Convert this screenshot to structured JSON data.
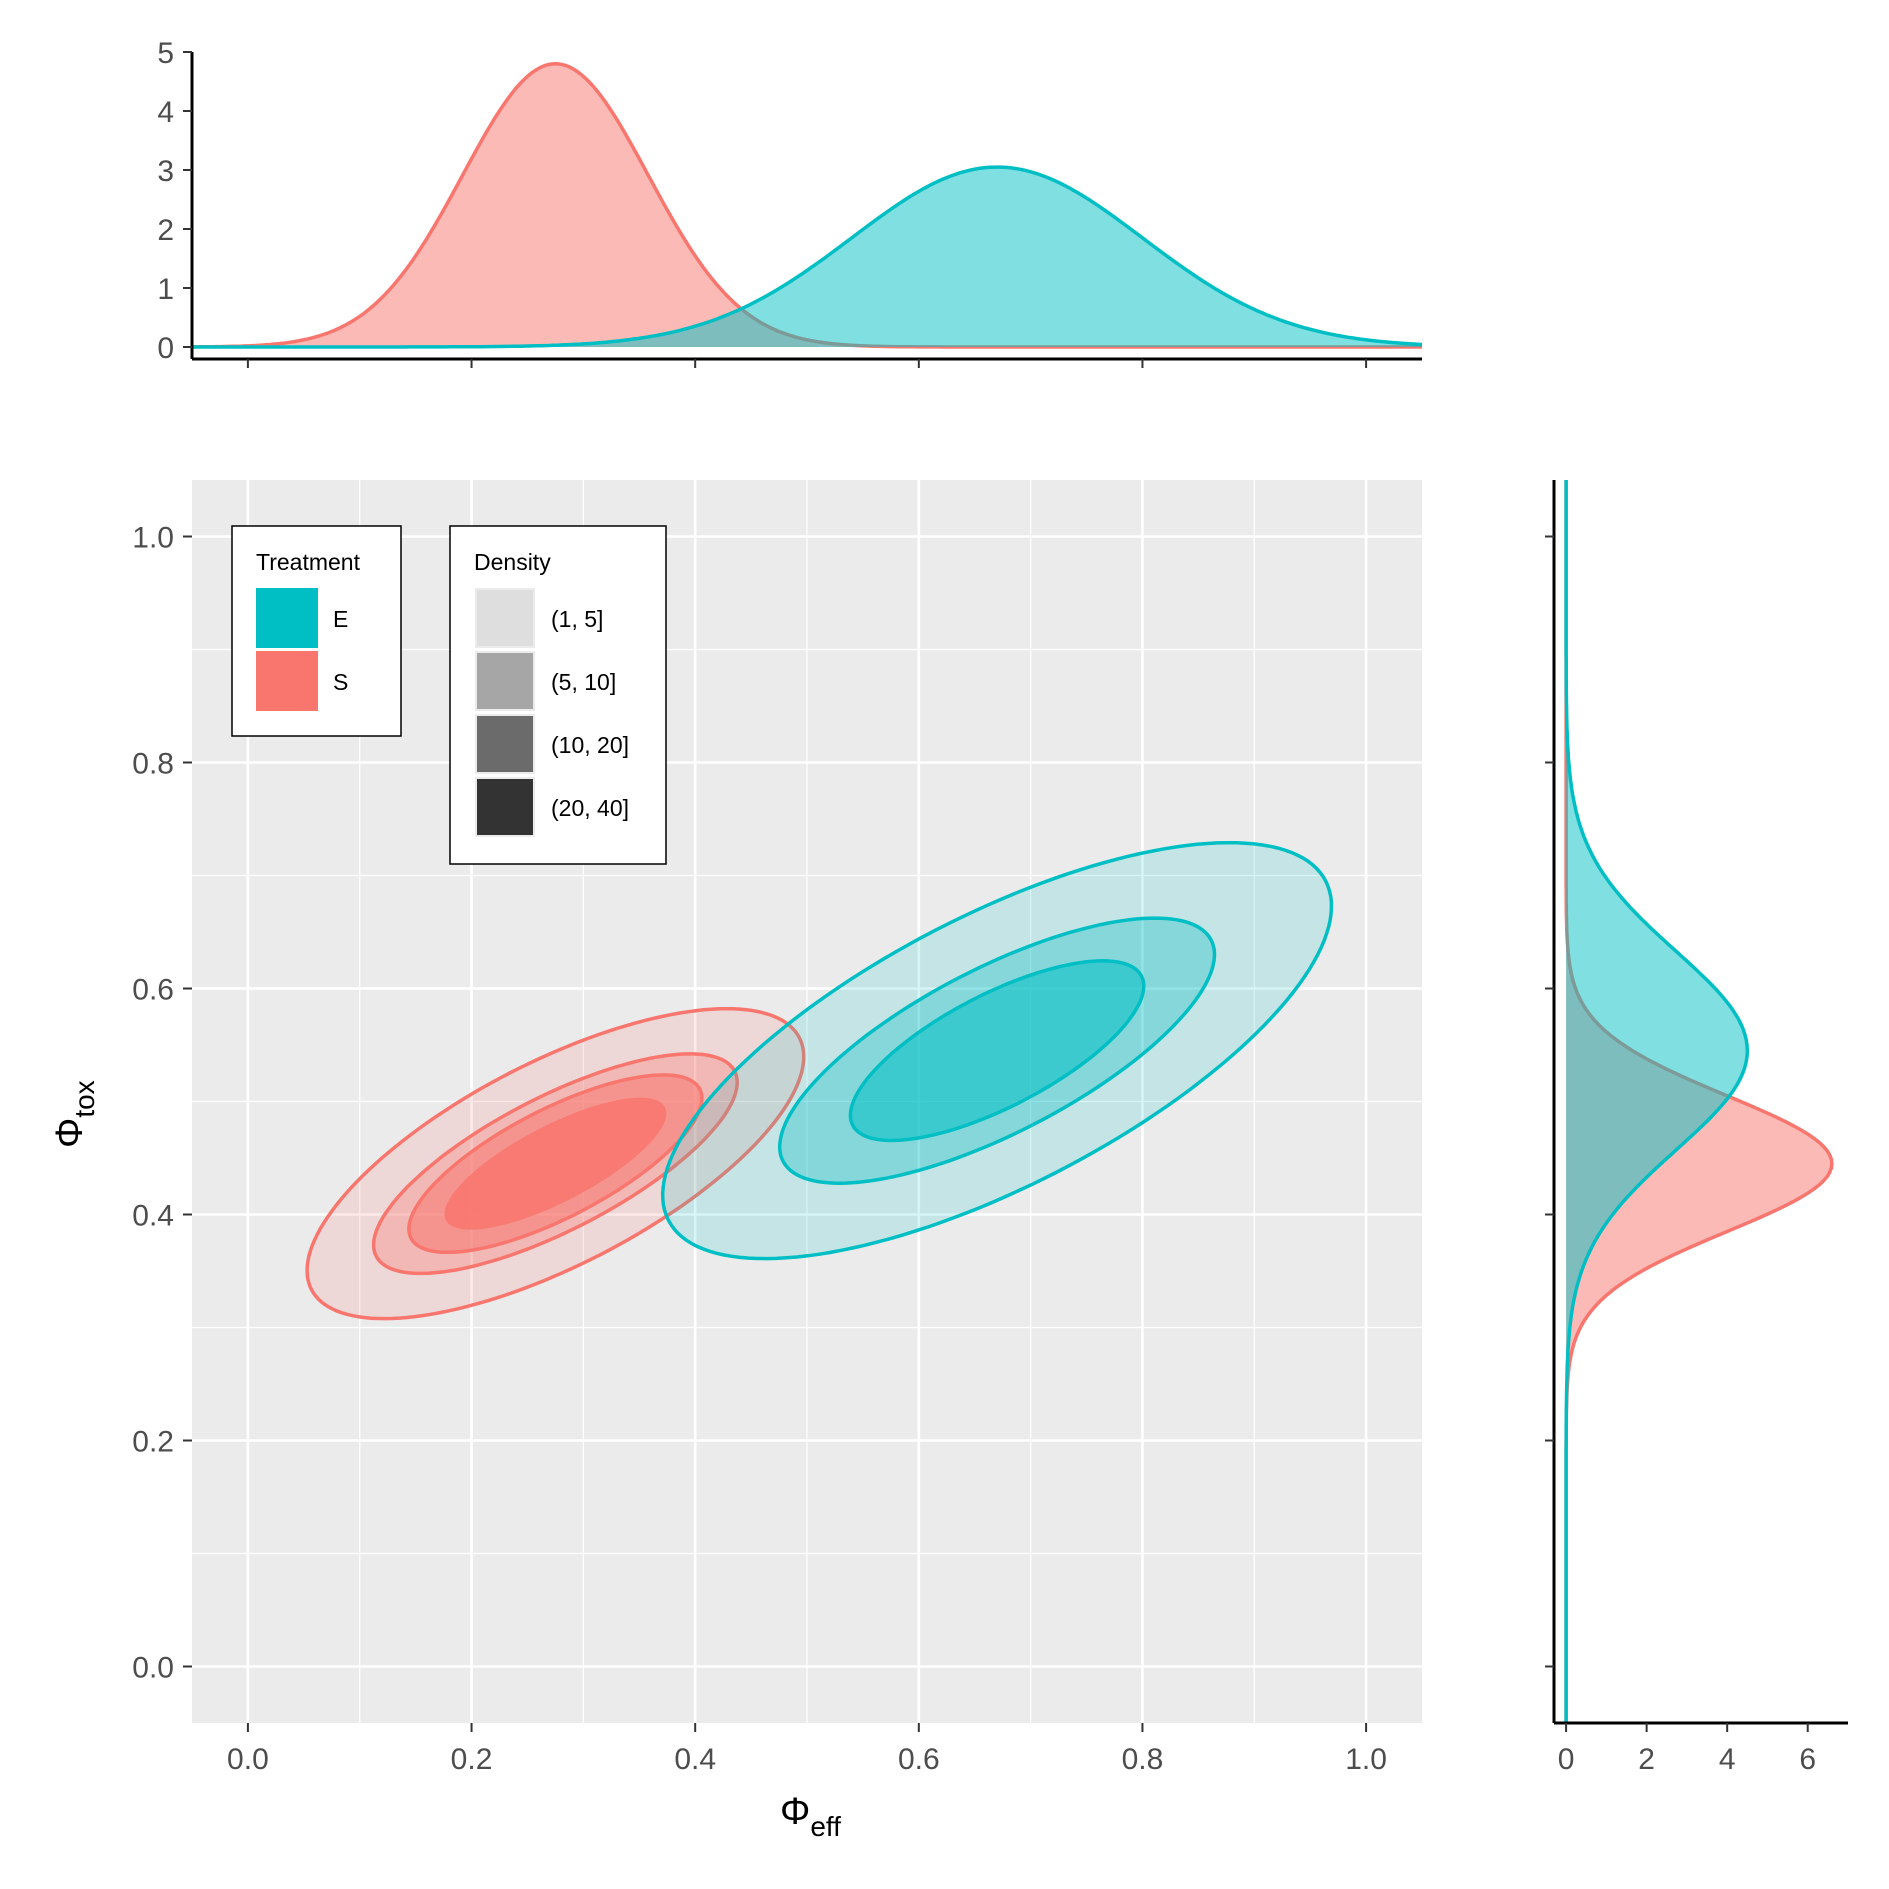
{
  "chart_data": {
    "type": "area",
    "x_axis": {
      "label_main": "Φ",
      "label_sub": "eff",
      "ticks": [
        0.0,
        0.2,
        0.4,
        0.6,
        0.8,
        1.0
      ],
      "tick_labels": [
        "0.0",
        "0.2",
        "0.4",
        "0.6",
        "0.8",
        "1.0"
      ],
      "range": [
        -0.05,
        1.05
      ]
    },
    "y_axis": {
      "label_main": "Φ",
      "label_sub": "tox",
      "ticks": [
        0.0,
        0.2,
        0.4,
        0.6,
        0.8,
        1.0
      ],
      "tick_labels": [
        "0.0",
        "0.2",
        "0.4",
        "0.6",
        "0.8",
        "1.0"
      ],
      "range": [
        -0.05,
        1.05
      ]
    },
    "top_marginal": {
      "y_ticks": [
        0,
        1,
        2,
        3,
        4,
        5
      ],
      "y_tick_labels": [
        "0",
        "1",
        "2",
        "3",
        "4",
        "5"
      ],
      "y_range": [
        0,
        5
      ],
      "series": [
        {
          "name": "S",
          "peak_x": 0.275,
          "peak_y": 4.8,
          "sd": 0.083
        },
        {
          "name": "E",
          "peak_x": 0.67,
          "peak_y": 3.05,
          "sd": 0.13
        }
      ]
    },
    "right_marginal": {
      "x_ticks": [
        0,
        2,
        4,
        6
      ],
      "x_tick_labels": [
        "0",
        "2",
        "4",
        "6"
      ],
      "x_range": [
        -0.3,
        7
      ],
      "series": [
        {
          "name": "S",
          "peak_y": 0.445,
          "peak_x": 6.6,
          "sd": 0.06
        },
        {
          "name": "E",
          "peak_y": 0.545,
          "peak_x": 4.5,
          "sd": 0.088
        }
      ]
    },
    "contours": [
      {
        "treatment": "S",
        "level": "(1, 5]",
        "cx": 0.275,
        "cy": 0.445,
        "a": 0.245,
        "b": 0.09,
        "angle_deg": 27
      },
      {
        "treatment": "S",
        "level": "(5, 10]",
        "cx": 0.275,
        "cy": 0.445,
        "a": 0.18,
        "b": 0.059,
        "angle_deg": 27
      },
      {
        "treatment": "S",
        "level": "(10, 20]",
        "cx": 0.275,
        "cy": 0.445,
        "a": 0.145,
        "b": 0.048,
        "angle_deg": 27
      },
      {
        "treatment": "S",
        "level": "(20, 40]",
        "cx": 0.275,
        "cy": 0.445,
        "a": 0.11,
        "b": 0.034,
        "angle_deg": 27
      },
      {
        "treatment": "E",
        "level": "(1, 5]",
        "cx": 0.67,
        "cy": 0.545,
        "a": 0.33,
        "b": 0.12,
        "angle_deg": 27
      },
      {
        "treatment": "E",
        "level": "(5, 10]",
        "cx": 0.67,
        "cy": 0.545,
        "a": 0.215,
        "b": 0.073,
        "angle_deg": 27
      },
      {
        "treatment": "E",
        "level": "(10, 20]",
        "cx": 0.67,
        "cy": 0.545,
        "a": 0.145,
        "b": 0.05,
        "angle_deg": 27
      }
    ],
    "legends": {
      "treatment": {
        "title": "Treatment",
        "items": [
          {
            "label": "E",
            "color": "#00BFC4"
          },
          {
            "label": "S",
            "color": "#F8766D"
          }
        ]
      },
      "density": {
        "title": "Density",
        "items": [
          {
            "label": "(1, 5]",
            "color": "#DEDEDE"
          },
          {
            "label": "(5, 10]",
            "color": "#A6A6A6"
          },
          {
            "label": "(10, 20]",
            "color": "#6B6B6B"
          },
          {
            "label": "(20, 40]",
            "color": "#333333"
          }
        ]
      }
    },
    "colors": {
      "E": "#00BFC4",
      "S": "#F8766D",
      "panel_bg": "#EBEBEB",
      "grid": "#FFFFFF"
    },
    "legend_placement": "top-left inside main panel",
    "grid": true
  }
}
